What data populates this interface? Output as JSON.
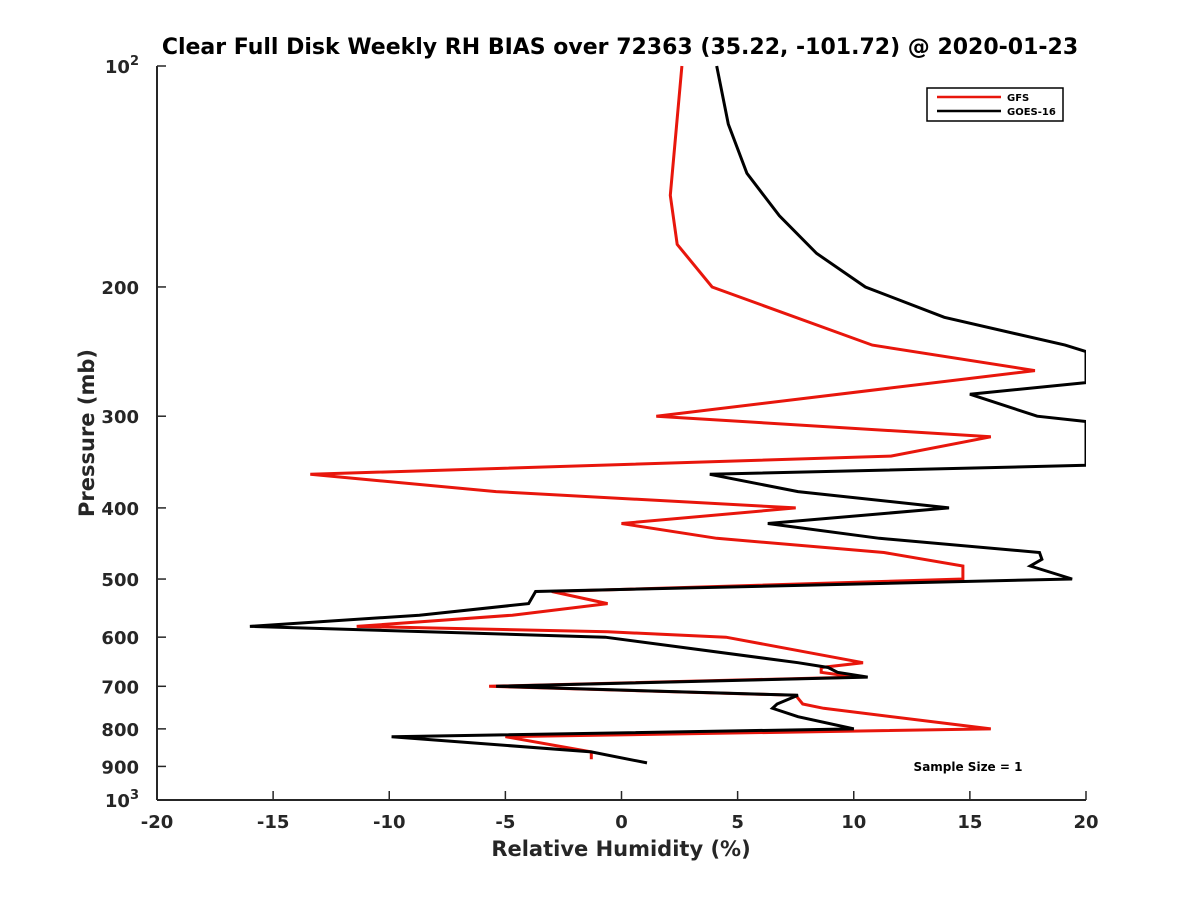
{
  "chart_data": {
    "type": "line",
    "title": "Clear Full Disk Weekly RH BIAS over 72363 (35.22, -101.72) @ 2020-01-23",
    "xlabel": "Relative Humidity (%)",
    "ylabel": "Pressure (mb)",
    "xlim": [
      -20,
      20
    ],
    "ylim": [
      1000,
      100
    ],
    "yscale": "log",
    "y_reversed": true,
    "grid": false,
    "x_ticks": [
      -20,
      -15,
      -10,
      -5,
      0,
      5,
      10,
      15,
      20
    ],
    "x_tick_labels": [
      "-20",
      "-15",
      "-10",
      "-5",
      "0",
      "5",
      "10",
      "15",
      "20"
    ],
    "y_ticks": [
      {
        "value": 100,
        "base": "10",
        "exp": "2"
      },
      {
        "value": 200,
        "label": "200"
      },
      {
        "value": 300,
        "label": "300"
      },
      {
        "value": 400,
        "label": "400"
      },
      {
        "value": 500,
        "label": "500"
      },
      {
        "value": 600,
        "label": "600"
      },
      {
        "value": 700,
        "label": "700"
      },
      {
        "value": 800,
        "label": "800"
      },
      {
        "value": 900,
        "label": "900"
      },
      {
        "value": 1000,
        "base": "10",
        "exp": "3"
      }
    ],
    "legend_position": "top-right",
    "annotation": "Sample Size = 1",
    "series": [
      {
        "name": "GFS",
        "color": "#e8160c",
        "points": [
          [
            2.6,
            100
          ],
          [
            2.1,
            150
          ],
          [
            2.4,
            175
          ],
          [
            3.9,
            200
          ],
          [
            10.8,
            240
          ],
          [
            17.8,
            260
          ],
          [
            1.5,
            300
          ],
          [
            15.9,
            320
          ],
          [
            11.6,
            340
          ],
          [
            -13.4,
            360
          ],
          [
            -5.4,
            380
          ],
          [
            7.5,
            400
          ],
          [
            0.0,
            420
          ],
          [
            4.1,
            440
          ],
          [
            11.3,
            460
          ],
          [
            14.7,
            480
          ],
          [
            14.7,
            500
          ],
          [
            -3.0,
            520
          ],
          [
            -0.6,
            540
          ],
          [
            -4.7,
            560
          ],
          [
            -11.4,
            580
          ],
          [
            -0.6,
            590
          ],
          [
            4.5,
            600
          ],
          [
            10.4,
            650
          ],
          [
            8.6,
            660
          ],
          [
            8.6,
            670
          ],
          [
            10.1,
            680
          ],
          [
            -5.7,
            700
          ],
          [
            7.5,
            720
          ],
          [
            7.8,
            740
          ],
          [
            8.7,
            750
          ],
          [
            15.9,
            800
          ],
          [
            -5.0,
            820
          ],
          [
            -1.3,
            860
          ],
          [
            -1.3,
            880
          ]
        ]
      },
      {
        "name": "GOES-16",
        "color": "#000000",
        "points": [
          [
            4.1,
            100
          ],
          [
            4.6,
            120
          ],
          [
            5.4,
            140
          ],
          [
            6.8,
            160
          ],
          [
            8.4,
            180
          ],
          [
            10.5,
            200
          ],
          [
            13.9,
            220
          ],
          [
            19.1,
            240
          ],
          [
            20.0,
            245
          ],
          [
            20.0,
            270
          ],
          [
            15.0,
            280
          ],
          [
            17.9,
            300
          ],
          [
            20.0,
            305
          ],
          [
            20.0,
            350
          ],
          [
            3.8,
            360
          ],
          [
            7.6,
            380
          ],
          [
            14.1,
            400
          ],
          [
            6.3,
            420
          ],
          [
            11.1,
            440
          ],
          [
            18.0,
            460
          ],
          [
            18.1,
            470
          ],
          [
            17.6,
            480
          ],
          [
            19.4,
            500
          ],
          [
            -3.7,
            520
          ],
          [
            -4.0,
            540
          ],
          [
            -8.7,
            560
          ],
          [
            -16.0,
            580
          ],
          [
            -0.7,
            600
          ],
          [
            7.6,
            650
          ],
          [
            8.9,
            660
          ],
          [
            9.3,
            670
          ],
          [
            10.6,
            680
          ],
          [
            -5.4,
            700
          ],
          [
            7.6,
            720
          ],
          [
            6.7,
            740
          ],
          [
            6.5,
            750
          ],
          [
            7.6,
            770
          ],
          [
            10.0,
            800
          ],
          [
            -9.9,
            820
          ],
          [
            -1.3,
            860
          ],
          [
            1.1,
            890
          ]
        ]
      }
    ]
  }
}
